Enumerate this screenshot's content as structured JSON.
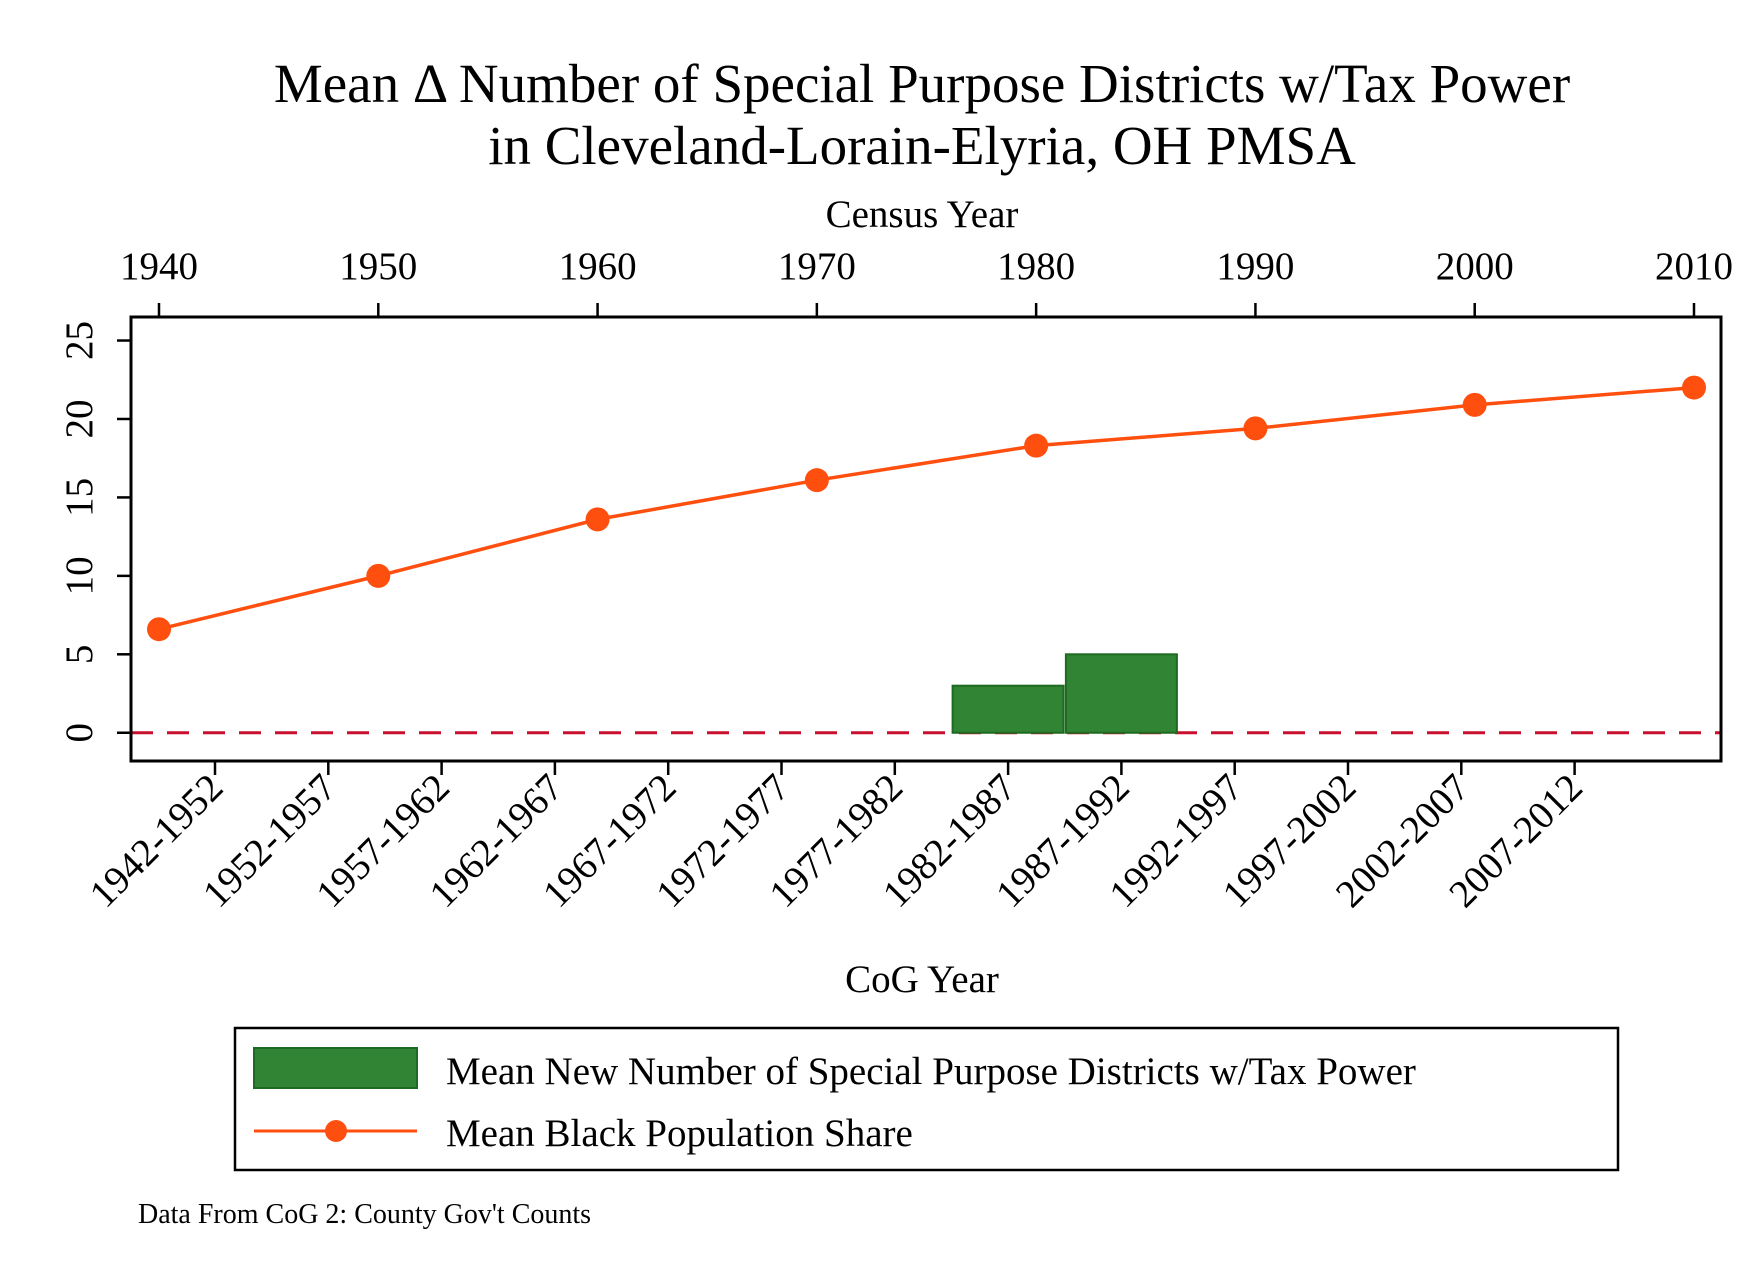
{
  "chart_data": {
    "type": "bar+line",
    "title": [
      "Mean Δ Number of Special Purpose Districts w/Tax Power",
      "in Cleveland-Lorain-Elyria, OH PMSA"
    ],
    "top_axis": {
      "label": "Census Year",
      "ticks": [
        1940,
        1950,
        1960,
        1970,
        1980,
        1990,
        2000,
        2010
      ]
    },
    "bottom_axis": {
      "label": "CoG Year",
      "categories": [
        "1942-1952",
        "1952-1957",
        "1957-1962",
        "1962-1967",
        "1967-1972",
        "1972-1977",
        "1977-1982",
        "1982-1987",
        "1987-1992",
        "1992-1997",
        "1997-2002",
        "2002-2007",
        "2007-2012"
      ]
    },
    "y_axis": {
      "ticks": [
        0,
        5,
        10,
        15,
        20,
        25
      ],
      "ylim": [
        -1.8,
        26.5
      ]
    },
    "reference_line": {
      "y": 0,
      "style": "dashed",
      "color": "#c8102e"
    },
    "bars": {
      "name": "Mean New Number of Special Purpose Districts w/Tax Power",
      "color": "#318433",
      "values": [
        null,
        null,
        null,
        null,
        null,
        null,
        null,
        3,
        5,
        null,
        null,
        null,
        null
      ]
    },
    "line": {
      "name": "Mean Black Population Share",
      "color": "#ff4f0f",
      "x": [
        1940,
        1950,
        1960,
        1970,
        1980,
        1990,
        2000,
        2010
      ],
      "y": [
        6.6,
        10.0,
        13.6,
        16.1,
        18.3,
        19.4,
        20.9,
        22.0
      ]
    },
    "legend_position": "bottom",
    "grid": false
  },
  "note": "Data From CoG 2: County Gov't Counts"
}
